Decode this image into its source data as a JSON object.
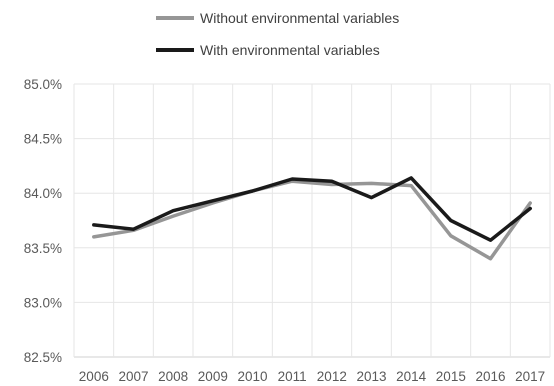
{
  "chart_data": {
    "type": "line",
    "categories": [
      "2006",
      "2007",
      "2008",
      "2009",
      "2010",
      "2011",
      "2012",
      "2013",
      "2014",
      "2015",
      "2016",
      "2017"
    ],
    "series": [
      {
        "name": "Without environmental variables",
        "color": "#969696",
        "values": [
          83.6,
          83.66,
          83.79,
          83.91,
          84.02,
          84.11,
          84.08,
          84.09,
          84.07,
          83.61,
          83.4,
          83.91
        ]
      },
      {
        "name": "With environmental variables",
        "color": "#1a1a1a",
        "values": [
          83.71,
          83.67,
          83.84,
          83.93,
          84.02,
          84.13,
          84.11,
          83.96,
          84.14,
          83.75,
          83.57,
          83.86
        ]
      }
    ],
    "y_ticks": [
      "85.0%",
      "84.5%",
      "84.0%",
      "83.5%",
      "83.0%",
      "82.5%"
    ],
    "ylim": [
      82.5,
      85.0
    ],
    "y_unit": "%",
    "grid": true,
    "legend_position": "top-center"
  }
}
